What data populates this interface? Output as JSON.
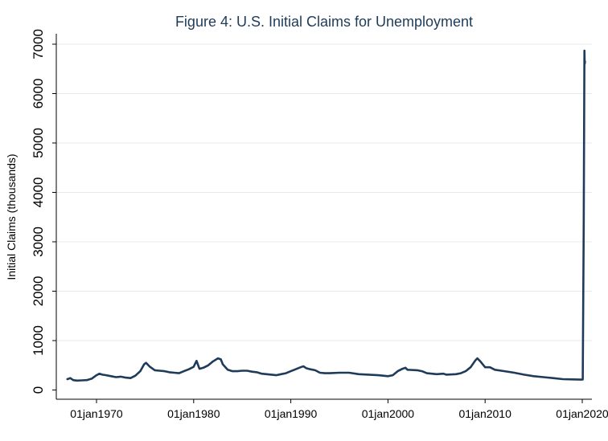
{
  "chart_data": {
    "type": "line",
    "title": "Figure 4: U.S. Initial Claims for Unemployment",
    "xlabel": "",
    "ylabel": "Initial Claims (thousands)",
    "ylim": [
      0,
      7000
    ],
    "xlim": [
      1967.0,
      2020.3
    ],
    "yticks": [
      {
        "value": 0,
        "label": "0"
      },
      {
        "value": 1000,
        "label": "1000"
      },
      {
        "value": 2000,
        "label": "2000"
      },
      {
        "value": 3000,
        "label": "3000"
      },
      {
        "value": 4000,
        "label": "4000"
      },
      {
        "value": 5000,
        "label": "5000"
      },
      {
        "value": 6000,
        "label": "6000"
      },
      {
        "value": 7000,
        "label": "7000"
      }
    ],
    "xticks": [
      {
        "value": 1970,
        "label": "01jan1970"
      },
      {
        "value": 1980,
        "label": "01jan1980"
      },
      {
        "value": 1990,
        "label": "01jan1990"
      },
      {
        "value": 2000,
        "label": "01jan2000"
      },
      {
        "value": 2010,
        "label": "01jan2010"
      },
      {
        "value": 2020,
        "label": "01jan2020"
      }
    ],
    "grid": true,
    "series": [
      {
        "name": "Initial Claims",
        "color": "#1f3b5a",
        "x": [
          1967.0,
          1967.3,
          1967.6,
          1968.0,
          1968.5,
          1969.0,
          1969.5,
          1970.0,
          1970.3,
          1970.6,
          1971.0,
          1971.5,
          1972.0,
          1972.5,
          1973.0,
          1973.5,
          1974.0,
          1974.5,
          1974.9,
          1975.1,
          1975.5,
          1976.0,
          1976.5,
          1977.0,
          1977.5,
          1978.0,
          1978.5,
          1979.0,
          1979.5,
          1980.0,
          1980.3,
          1980.6,
          1981.0,
          1981.5,
          1982.0,
          1982.5,
          1982.8,
          1983.0,
          1983.5,
          1984.0,
          1984.5,
          1985.0,
          1985.5,
          1986.0,
          1986.5,
          1987.0,
          1987.5,
          1988.0,
          1988.5,
          1989.0,
          1989.5,
          1990.0,
          1990.5,
          1991.0,
          1991.3,
          1991.6,
          1992.0,
          1992.5,
          1993.0,
          1993.5,
          1994.0,
          1995.0,
          1996.0,
          1997.0,
          1998.0,
          1999.0,
          2000.0,
          2000.5,
          2001.0,
          2001.5,
          2001.8,
          2002.0,
          2003.0,
          2003.5,
          2004.0,
          2004.5,
          2005.0,
          2005.7,
          2006.0,
          2007.0,
          2007.5,
          2008.0,
          2008.5,
          2009.0,
          2009.2,
          2009.5,
          2010.0,
          2010.5,
          2011.0,
          2012.0,
          2013.0,
          2014.0,
          2015.0,
          2016.0,
          2017.0,
          2018.0,
          2019.0,
          2019.9,
          2020.05,
          2020.15,
          2020.22,
          2020.25,
          2020.28
        ],
        "values": [
          220,
          240,
          200,
          190,
          195,
          200,
          230,
          300,
          330,
          310,
          300,
          280,
          260,
          270,
          250,
          240,
          290,
          380,
          520,
          550,
          470,
          400,
          390,
          380,
          360,
          350,
          340,
          380,
          420,
          470,
          590,
          430,
          450,
          500,
          580,
          640,
          620,
          520,
          410,
          380,
          380,
          390,
          390,
          370,
          360,
          330,
          320,
          310,
          300,
          320,
          340,
          380,
          420,
          460,
          480,
          440,
          420,
          400,
          350,
          340,
          340,
          350,
          350,
          320,
          310,
          300,
          280,
          300,
          380,
          430,
          450,
          410,
          400,
          380,
          340,
          330,
          320,
          330,
          310,
          320,
          340,
          380,
          460,
          600,
          640,
          580,
          460,
          460,
          410,
          380,
          350,
          310,
          280,
          260,
          240,
          220,
          215,
          210,
          211,
          3300,
          6870,
          6600,
          6650
        ]
      }
    ]
  }
}
